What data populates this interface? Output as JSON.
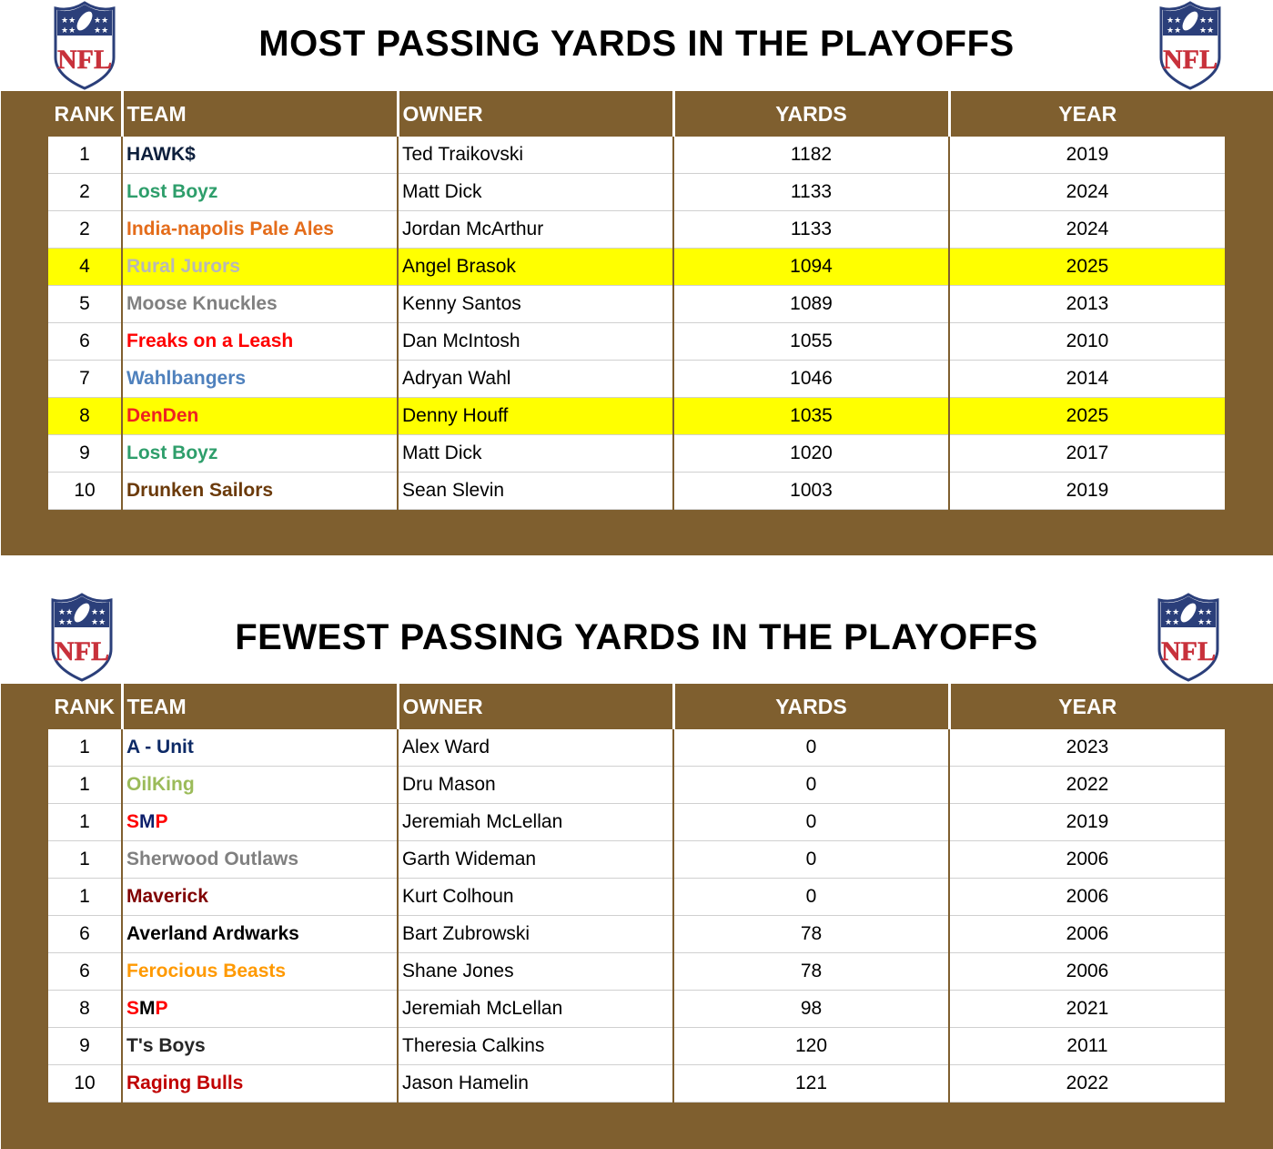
{
  "logo_text": "NFL",
  "colors": {
    "band": "#7f5f2f",
    "highlight": "#ffff00"
  },
  "columns": [
    "RANK",
    "TEAM",
    "OWNER",
    "YARDS",
    "YEAR"
  ],
  "tables": [
    {
      "title": "MOST PASSING YARDS IN THE PLAYOFFS",
      "rows": [
        {
          "rank": "1",
          "team": "HAWK$",
          "team_color": "#0d1f3c",
          "owner": "Ted Traikovski",
          "yards": "1182",
          "year": "2019"
        },
        {
          "rank": "2",
          "team": "Lost Boyz",
          "team_color": "#2e9e6b",
          "owner": "Matt Dick",
          "yards": "1133",
          "year": "2024"
        },
        {
          "rank": "2",
          "team": "India-napolis Pale Ales",
          "team_color": "#e46c1a",
          "owner": "Jordan McArthur",
          "yards": "1133",
          "year": "2024"
        },
        {
          "rank": "4",
          "team": "Rural Jurors",
          "team_color": "#b8b8b8",
          "owner": "Angel Brasok",
          "yards": "1094",
          "year": "2025",
          "highlight": true
        },
        {
          "rank": "5",
          "team": "Moose Knuckles",
          "team_color": "#808080",
          "owner": "Kenny Santos",
          "yards": "1089",
          "year": "2013"
        },
        {
          "rank": "6",
          "team": "Freaks on a Leash",
          "team_color": "#ff0000",
          "owner": "Dan McIntosh",
          "yards": "1055",
          "year": "2010"
        },
        {
          "rank": "7",
          "team": "Wahlbangers",
          "team_color": "#4f81bd",
          "owner": "Adryan Wahl",
          "yards": "1046",
          "year": "2014"
        },
        {
          "rank": "8",
          "team": "DenDen",
          "team_color": "#ee2222",
          "owner": "Denny Houff",
          "yards": "1035",
          "year": "2025",
          "highlight": true
        },
        {
          "rank": "9",
          "team": "Lost Boyz",
          "team_color": "#2e9e6b",
          "owner": "Matt Dick",
          "yards": "1020",
          "year": "2017"
        },
        {
          "rank": "10",
          "team": "Drunken Sailors",
          "team_color": "#6b3a0a",
          "owner": "Sean Slevin",
          "yards": "1003",
          "year": "2019"
        }
      ]
    },
    {
      "title": "FEWEST PASSING YARDS IN THE PLAYOFFS",
      "rows": [
        {
          "rank": "1",
          "team": "A - Unit",
          "team_color": "#0d2a66",
          "owner": "Alex Ward",
          "yards": "0",
          "year": "2023"
        },
        {
          "rank": "1",
          "team": "OilKing",
          "team_color": "#9bbb59",
          "owner": "Dru Mason",
          "yards": "0",
          "year": "2022"
        },
        {
          "rank": "1",
          "team": "SMP",
          "team_segments": [
            {
              "text": "S",
              "color": "#ff0000"
            },
            {
              "text": "M",
              "color": "#0d1f6b"
            },
            {
              "text": "P",
              "color": "#ff0000"
            }
          ],
          "owner": "Jeremiah McLellan",
          "yards": "0",
          "year": "2019"
        },
        {
          "rank": "1",
          "team": "Sherwood Outlaws",
          "team_color": "#808080",
          "owner": "Garth Wideman",
          "yards": "0",
          "year": "2006"
        },
        {
          "rank": "1",
          "team": "Maverick",
          "team_color": "#800000",
          "owner": "Kurt Colhoun",
          "yards": "0",
          "year": "2006"
        },
        {
          "rank": "6",
          "team": "Averland Ardwarks",
          "team_color": "#000000",
          "owner": "Bart Zubrowski",
          "yards": "78",
          "year": "2006"
        },
        {
          "rank": "6",
          "team": "Ferocious Beasts",
          "team_color": "#ff9900",
          "owner": "Shane Jones",
          "yards": "78",
          "year": "2006"
        },
        {
          "rank": "8",
          "team": "SMP",
          "team_segments": [
            {
              "text": "S",
              "color": "#ff0000"
            },
            {
              "text": "M",
              "color": "#000000"
            },
            {
              "text": "P",
              "color": "#ff0000"
            }
          ],
          "owner": "Jeremiah McLellan",
          "yards": "98",
          "year": "2021"
        },
        {
          "rank": "9",
          "team": "T's Boys",
          "team_color": "#262626",
          "owner": "Theresia Calkins",
          "yards": "120",
          "year": "2011"
        },
        {
          "rank": "10",
          "team": "Raging Bulls",
          "team_color": "#c00000",
          "owner": "Jason Hamelin",
          "yards": "121",
          "year": "2022"
        }
      ]
    }
  ]
}
